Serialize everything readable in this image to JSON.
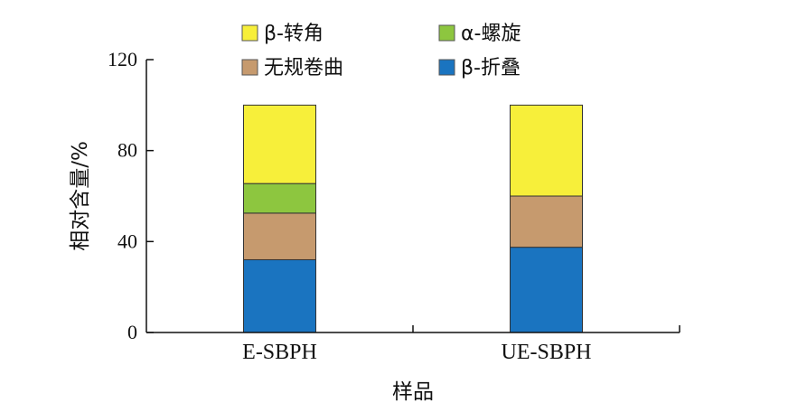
{
  "chart_data": {
    "type": "bar",
    "stacked": true,
    "categories": [
      "E-SBPH",
      "UE-SBPH"
    ],
    "series": [
      {
        "name": "β-折叠",
        "values": [
          32,
          37.5
        ],
        "color": "#1a74c0"
      },
      {
        "name": "无规卷曲",
        "values": [
          20.5,
          22.5
        ],
        "color": "#c69a6e"
      },
      {
        "name": "α-螺旋",
        "values": [
          13,
          0
        ],
        "color": "#8dc63f"
      },
      {
        "name": "β-转角",
        "values": [
          34.5,
          40
        ],
        "color": "#f7ef3a"
      }
    ],
    "legend_order": [
      "β-转角",
      "α-螺旋",
      "无规卷曲",
      "β-折叠"
    ],
    "legend_placement": "top",
    "xlabel": "样品",
    "ylabel": "相对含量/%",
    "ylim": [
      0,
      120
    ],
    "yticks": [
      "0",
      "40",
      "80",
      "120"
    ],
    "grid": false
  }
}
